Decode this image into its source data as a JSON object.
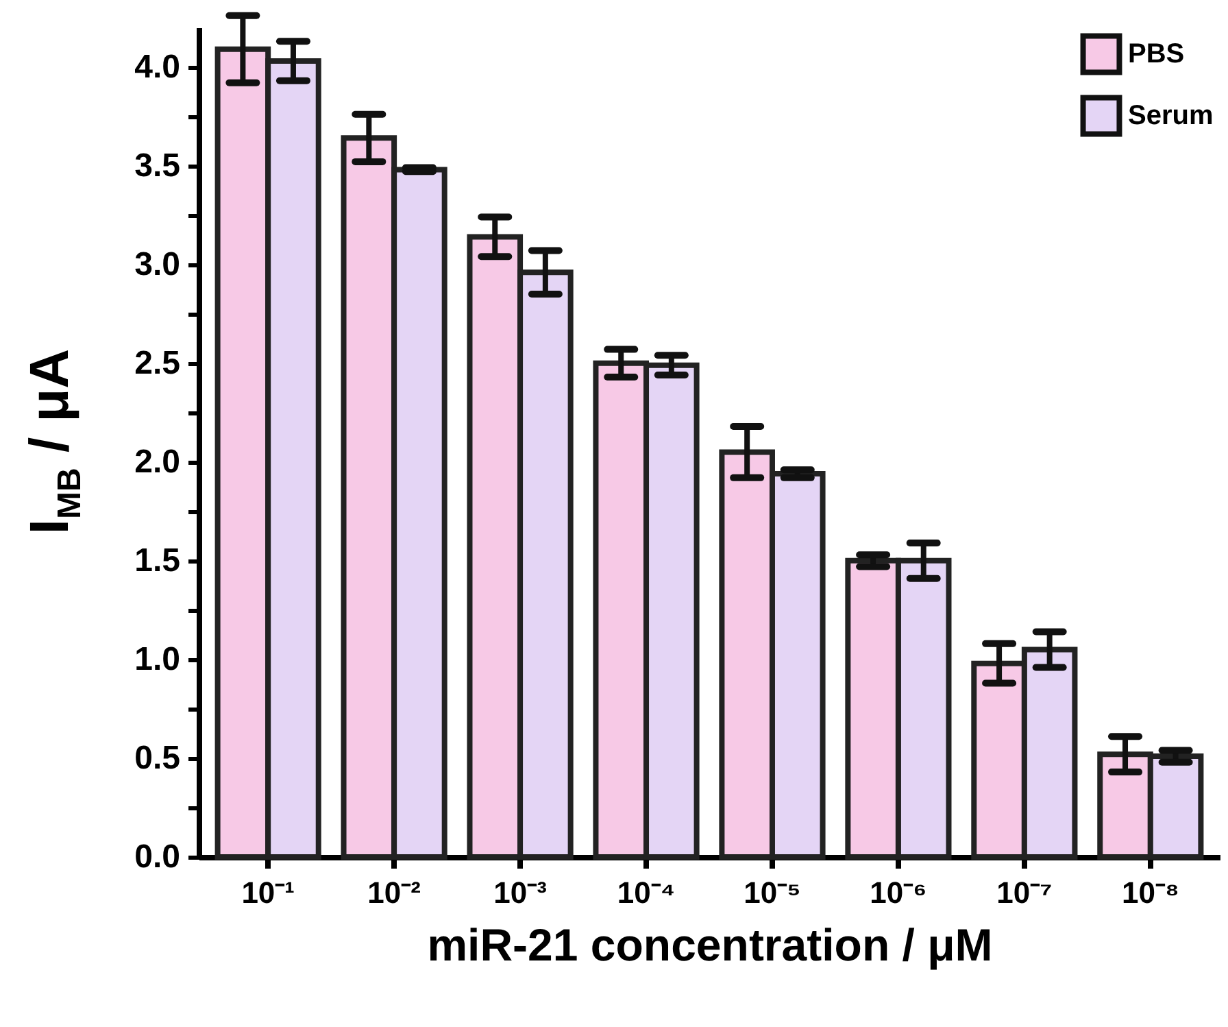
{
  "chart_data": {
    "type": "bar",
    "xlabel": "miR-21 concentration / μM",
    "ylabel": "I$_{MB}$ / μA",
    "categories": [
      "10⁻¹",
      "10⁻²",
      "10⁻³",
      "10⁻⁴",
      "10⁻⁵",
      "10⁻⁶",
      "10⁻⁷",
      "10⁻⁸"
    ],
    "series": [
      {
        "name": "PBS",
        "color": "#f7c9e6",
        "values": [
          4.09,
          3.64,
          3.14,
          2.5,
          2.05,
          1.5,
          0.98,
          0.52
        ],
        "errors": [
          0.17,
          0.12,
          0.1,
          0.07,
          0.13,
          0.03,
          0.1,
          0.09
        ]
      },
      {
        "name": "Serum",
        "color": "#e4d5f5",
        "values": [
          4.03,
          3.48,
          2.96,
          2.49,
          1.94,
          1.5,
          1.05,
          0.51
        ],
        "errors": [
          0.1,
          0.01,
          0.11,
          0.05,
          0.02,
          0.09,
          0.09,
          0.03
        ]
      }
    ],
    "ylim": [
      0,
      4.2
    ],
    "yticks": [
      {
        "value": 0,
        "label": "0.0"
      },
      {
        "value": 0.25,
        "label": null
      },
      0.5,
      {
        "value": 0.75,
        "label": null
      },
      {
        "value": 1,
        "label": "1.0"
      },
      {
        "value": 1.25,
        "label": null
      },
      1.5,
      {
        "value": 1.75,
        "label": null
      },
      {
        "value": 2,
        "label": "2.0"
      },
      {
        "value": 2.25,
        "label": null
      },
      2.5,
      {
        "value": 2.75,
        "label": null
      },
      {
        "value": 3,
        "label": "3.0"
      },
      {
        "value": 3.25,
        "label": null
      },
      3.5,
      {
        "value": 3.75,
        "label": null
      },
      {
        "value": 4,
        "label": "4.0"
      }
    ],
    "legend": "top right",
    "grid": false
  }
}
